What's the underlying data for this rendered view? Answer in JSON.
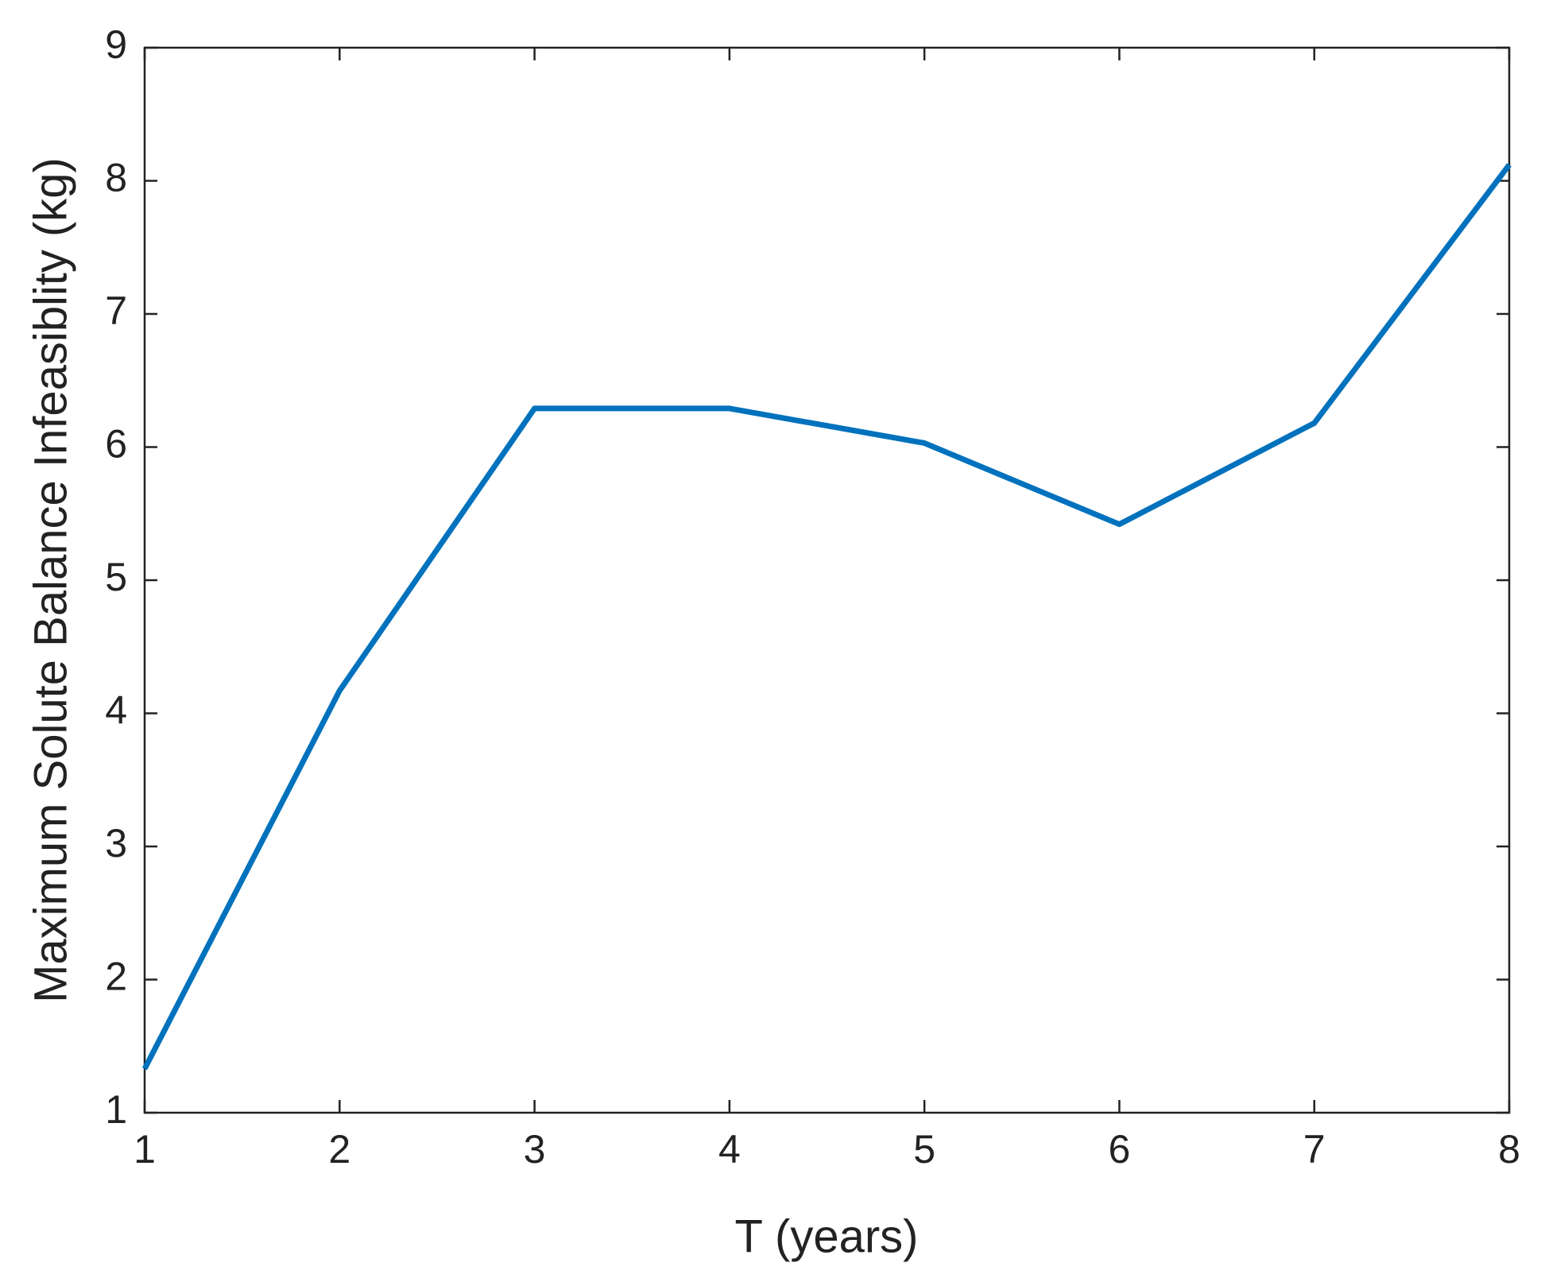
{
  "chart_data": {
    "type": "line",
    "x_label": "T (years)",
    "y_label": "Maximum Solute Balance Infeasiblity (kg)",
    "x": [
      1,
      2,
      3,
      4,
      5,
      6,
      7,
      8
    ],
    "series": [
      {
        "color": "#0072bd",
        "values": [
          1.33,
          4.17,
          6.29,
          6.29,
          6.03,
          5.42,
          6.18,
          8.12
        ]
      }
    ],
    "xlim": [
      1,
      8
    ],
    "xticks": [
      1,
      2,
      3,
      4,
      5,
      6,
      7,
      8
    ],
    "ylim": [
      1,
      9
    ],
    "yticks": [
      1,
      2,
      3,
      4,
      5,
      6,
      7,
      8,
      9
    ],
    "grid": false
  }
}
